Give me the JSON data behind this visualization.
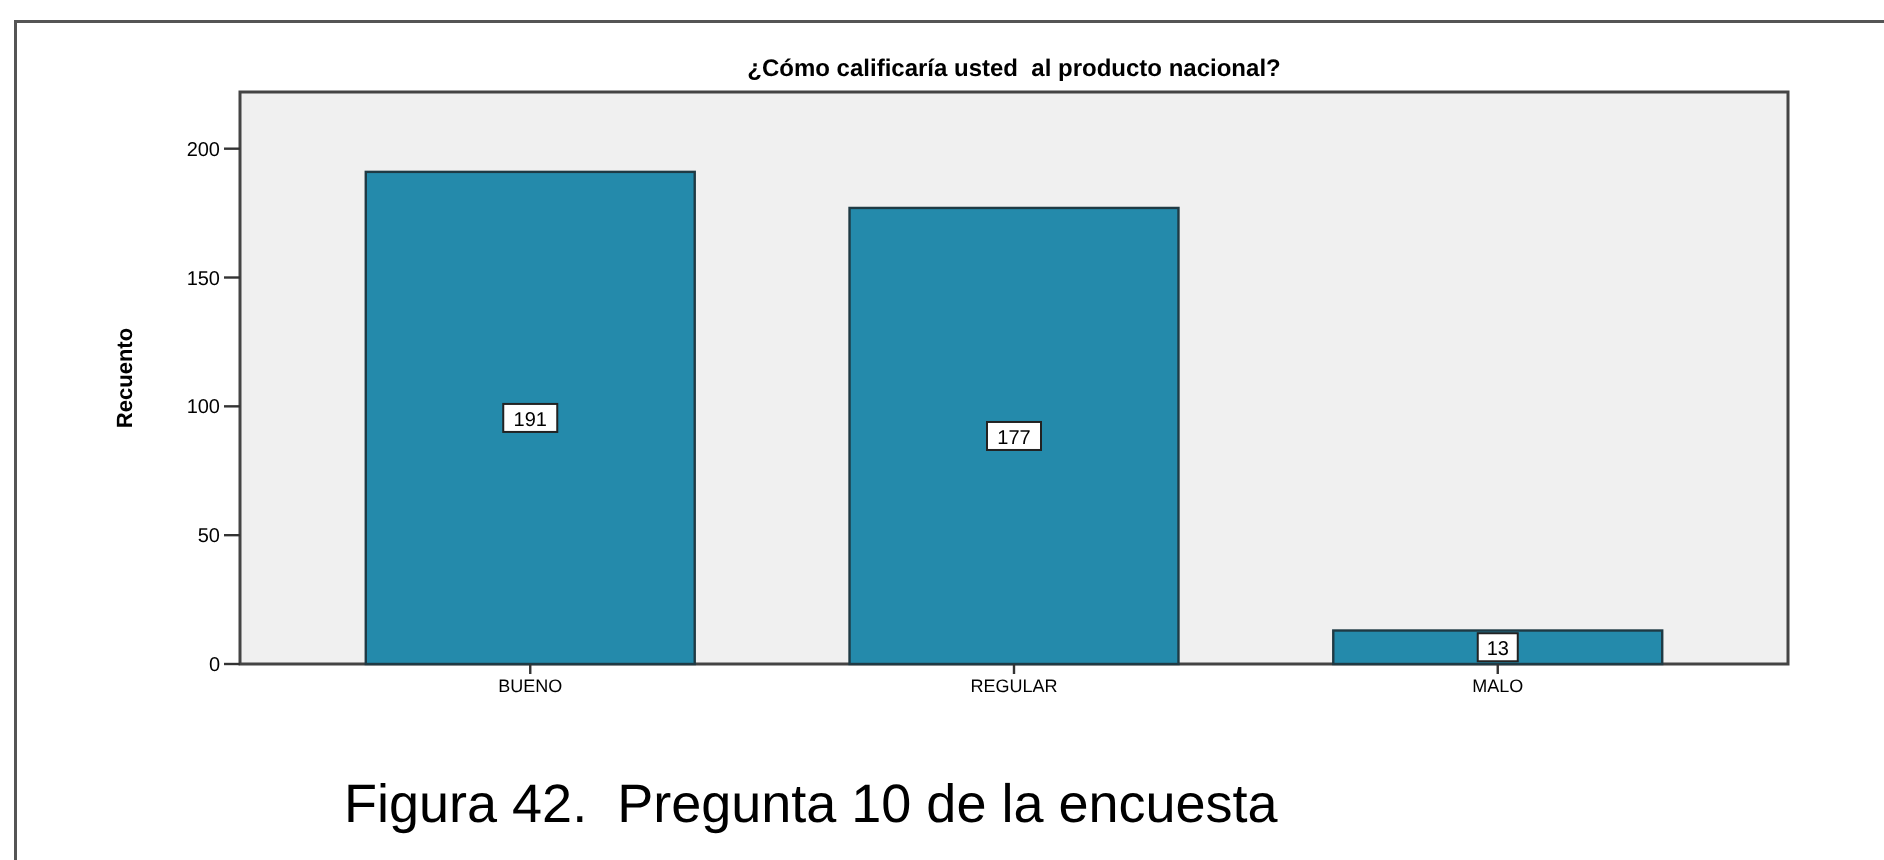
{
  "chart_data": {
    "type": "bar",
    "title": "¿Cómo calificaría usted  al producto nacional?",
    "ylabel": "Recuento",
    "categories": [
      "BUENO",
      "REGULAR",
      "MALO"
    ],
    "values": [
      191,
      177,
      13
    ],
    "color": "#248aab",
    "ylim": [
      0,
      222
    ],
    "yticks": [
      0,
      50,
      100,
      150,
      200
    ],
    "grid": false,
    "data_labels": true,
    "annotations": [
      "Figura 42.  Pregunta 10 de la encuesta"
    ]
  }
}
